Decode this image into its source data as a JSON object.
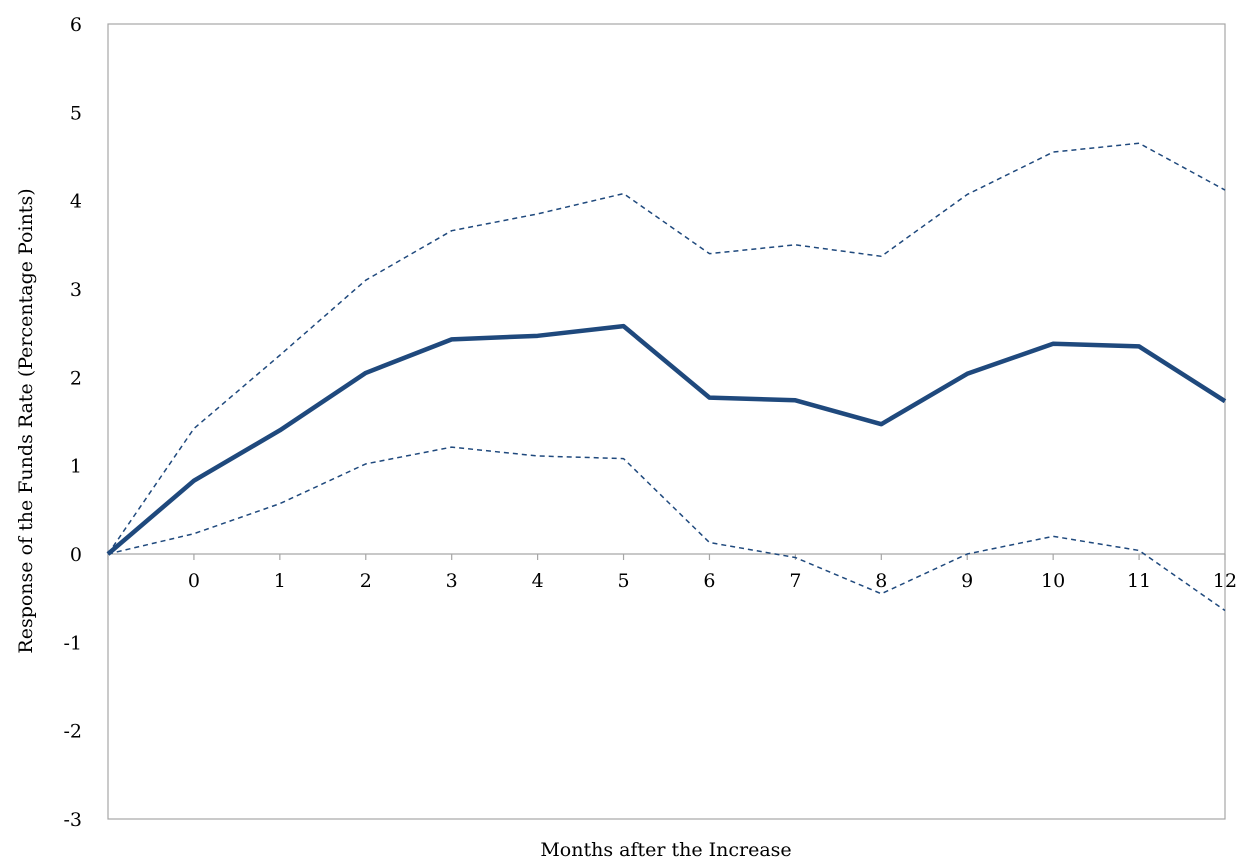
{
  "chart_data": {
    "type": "line",
    "title": "",
    "xlabel": "Months after the Increase",
    "ylabel": "Response of  the Funds Rate (Percentage Points)",
    "categories": [
      "",
      "0",
      "1",
      "2",
      "3",
      "4",
      "5",
      "6",
      "7",
      "8",
      "9",
      "10",
      "11",
      "12"
    ],
    "ylim": [
      -3,
      6
    ],
    "yticks": [
      -3,
      -2,
      -1,
      0,
      1,
      2,
      3,
      4,
      5,
      6
    ],
    "grid": false,
    "legend": "none",
    "series": [
      {
        "role": "estimate",
        "color": "#1f497d",
        "style": "solid",
        "values": [
          0,
          0.83,
          1.4,
          2.05,
          2.43,
          2.47,
          2.58,
          1.77,
          1.74,
          1.47,
          2.04,
          2.38,
          2.35,
          1.73
        ]
      },
      {
        "role": "upper-band",
        "color": "#1f497d",
        "style": "dashed",
        "values": [
          0,
          1.42,
          2.25,
          3.1,
          3.66,
          3.85,
          4.08,
          3.4,
          3.5,
          3.37,
          4.07,
          4.55,
          4.65,
          4.12
        ]
      },
      {
        "role": "lower-band",
        "color": "#1f497d",
        "style": "dashed",
        "values": [
          0,
          0.23,
          0.57,
          1.02,
          1.21,
          1.11,
          1.08,
          0.13,
          -0.04,
          -0.45,
          0.0,
          0.2,
          0.04,
          -0.64
        ]
      }
    ]
  }
}
